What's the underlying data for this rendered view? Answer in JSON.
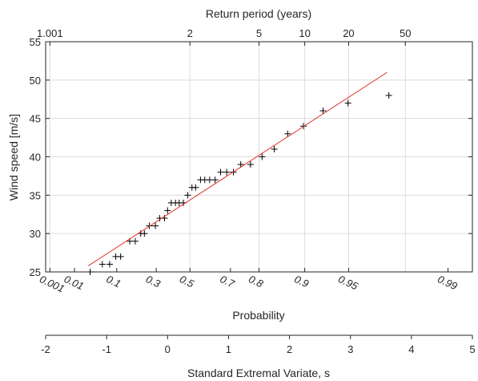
{
  "chart_data": {
    "type": "scatter",
    "title": "",
    "ylabel": "Wind speed [m/s]",
    "ylim": [
      25,
      55
    ],
    "yticks": [
      "25",
      "30",
      "35",
      "40",
      "45",
      "50",
      "55"
    ],
    "xlabel": "Standard Extremal Variate, s",
    "xlim": [
      -2,
      5
    ],
    "xticks": [
      "-2",
      "-1",
      "0",
      "1",
      "2",
      "3",
      "4",
      "5"
    ],
    "top_axis": {
      "label": "Return period (years)",
      "ticks": [
        {
          "text": "1.001",
          "s": -1.93
        },
        {
          "text": "2",
          "s": 0.3665
        },
        {
          "text": "5",
          "s": 1.5
        },
        {
          "text": "10",
          "s": 2.25
        },
        {
          "text": "20",
          "s": 2.97
        },
        {
          "text": "50",
          "s": 3.9
        }
      ]
    },
    "probability_axis": {
      "label": "Probability",
      "ticks": [
        {
          "text": "0.001",
          "s": -1.93
        },
        {
          "text": "0.01",
          "s": -1.527
        },
        {
          "text": "0.1",
          "s": -0.834
        },
        {
          "text": "0.3",
          "s": -0.186
        },
        {
          "text": "0.5",
          "s": 0.367
        },
        {
          "text": "0.7",
          "s": 1.031
        },
        {
          "text": "0.8",
          "s": 1.5
        },
        {
          "text": "0.9",
          "s": 2.25
        },
        {
          "text": "0.95",
          "s": 2.97
        },
        {
          "text": "0.99",
          "s": 4.6
        }
      ]
    },
    "series": [
      {
        "type": "scatter",
        "marker": "+",
        "x": [
          -1.27,
          -1.07,
          -0.95,
          -0.85,
          -0.77,
          -0.62,
          -0.53,
          -0.44,
          -0.38,
          -0.3,
          -0.2,
          -0.13,
          -0.05,
          0.0,
          0.06,
          0.13,
          0.19,
          0.26,
          0.33,
          0.4,
          0.46,
          0.54,
          0.61,
          0.69,
          0.78,
          0.87,
          0.97,
          1.08,
          1.2,
          1.36,
          1.55,
          1.75,
          1.97,
          2.23,
          2.55,
          2.96,
          3.63
        ],
        "y": [
          25,
          26,
          26,
          27,
          27,
          29,
          29,
          30,
          30,
          31,
          31,
          32,
          32,
          33,
          34,
          34,
          34,
          34,
          35,
          36,
          36,
          37,
          37,
          37,
          37,
          38,
          38,
          38,
          39,
          39,
          40,
          41,
          43,
          44,
          46,
          47,
          48
        ],
        "color": "#000000"
      },
      {
        "type": "line",
        "x": [
          -1.3,
          3.6
        ],
        "y": [
          25.8,
          51.0
        ],
        "color": "#e0302a"
      }
    ],
    "grid": true,
    "legend": "none"
  }
}
